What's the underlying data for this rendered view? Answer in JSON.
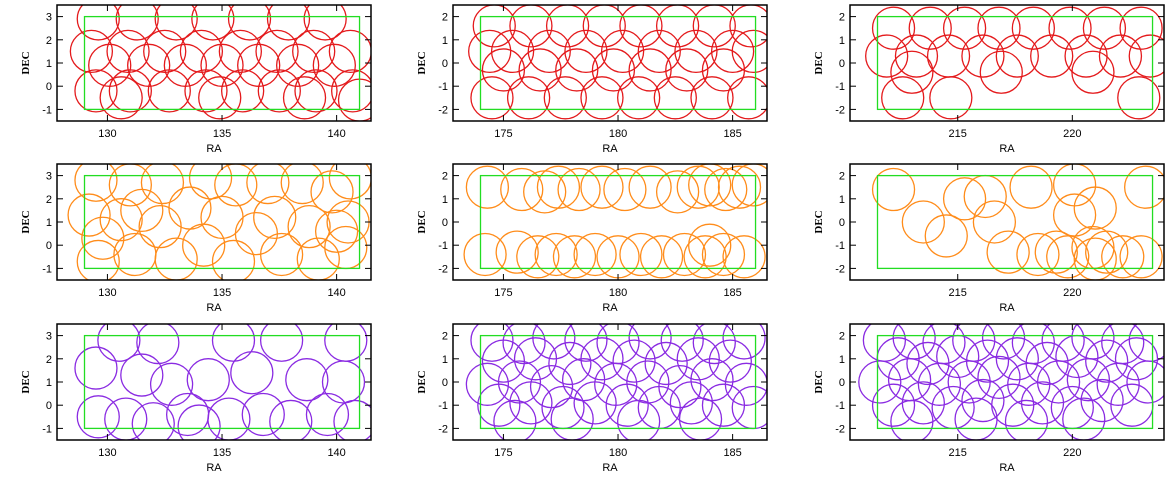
{
  "chart_data": [
    {
      "type": "scatter",
      "xlabel": "RA",
      "ylabel": "DEC",
      "xlim": [
        127.8,
        141.5
      ],
      "ylim": [
        -1.5,
        3.5
      ],
      "xticks": [
        130,
        135,
        140
      ],
      "yticks": [
        -1,
        0,
        1,
        2,
        3
      ],
      "region": {
        "x": [
          129,
          141
        ],
        "y": [
          -1,
          3
        ]
      },
      "series": [
        {
          "color": "#e41a1c",
          "x": [
            129.6,
            131.3,
            133.0,
            134.6,
            136.2,
            137.9,
            139.5,
            129.3,
            130.9,
            132.5,
            134.1,
            135.8,
            137.4,
            139.0,
            140.6,
            130.1,
            131.8,
            133.4,
            135.0,
            136.6,
            138.3,
            139.9,
            129.5,
            131.0,
            132.7,
            134.3,
            135.9,
            137.5,
            139.1,
            140.7,
            130.6,
            134.9,
            138.6,
            141.0
          ],
          "y": [
            2.9,
            2.9,
            2.9,
            2.9,
            2.9,
            2.9,
            2.9,
            1.5,
            1.5,
            1.5,
            1.5,
            1.5,
            1.5,
            1.5,
            1.5,
            0.9,
            0.9,
            0.9,
            0.9,
            0.9,
            0.9,
            0.9,
            -0.2,
            -0.2,
            -0.2,
            -0.2,
            -0.2,
            -0.2,
            -0.2,
            -0.2,
            -0.5,
            -0.5,
            -0.5,
            -0.6
          ]
        }
      ]
    },
    {
      "type": "scatter",
      "xlabel": "RA",
      "ylabel": "DEC",
      "xlim": [
        172.8,
        186.5
      ],
      "ylim": [
        -2.5,
        2.5
      ],
      "xticks": [
        175,
        180,
        185
      ],
      "yticks": [
        -2,
        -1,
        0,
        1,
        2
      ],
      "region": {
        "x": [
          174,
          186
        ],
        "y": [
          -2,
          2
        ]
      },
      "series": [
        {
          "color": "#e41a1c",
          "x": [
            174.6,
            176.2,
            177.8,
            179.4,
            181.0,
            182.6,
            184.2,
            185.8,
            174.4,
            175.4,
            177.0,
            178.6,
            180.2,
            181.8,
            183.4,
            185.0,
            185.9,
            175.0,
            176.6,
            178.2,
            179.8,
            181.4,
            183.0,
            184.6,
            174.5,
            176.1,
            177.7,
            179.3,
            180.9,
            182.5,
            184.1,
            185.7
          ],
          "y": [
            1.6,
            1.6,
            1.6,
            1.6,
            1.6,
            1.6,
            1.6,
            1.6,
            0.5,
            0.5,
            0.5,
            0.5,
            0.5,
            0.5,
            0.5,
            0.5,
            0.5,
            -0.3,
            -0.3,
            -0.3,
            -0.3,
            -0.3,
            -0.3,
            -0.3,
            -1.5,
            -1.5,
            -1.5,
            -1.5,
            -1.5,
            -1.5,
            -1.5,
            -1.5
          ]
        }
      ]
    },
    {
      "type": "scatter",
      "xlabel": "RA",
      "ylabel": "DEC",
      "xlim": [
        210.3,
        224
      ],
      "ylim": [
        -2.5,
        2.5
      ],
      "xticks": [
        215,
        220
      ],
      "yticks": [
        -2,
        -1,
        0,
        1,
        2
      ],
      "region": {
        "x": [
          211.5,
          223.5
        ],
        "y": [
          -2,
          2
        ]
      },
      "series": [
        {
          "color": "#e41a1c",
          "x": [
            212.2,
            213.8,
            215.3,
            216.8,
            218.3,
            219.9,
            221.4,
            223.0,
            211.9,
            213.2,
            214.6,
            216.1,
            217.6,
            219.1,
            220.6,
            222.1,
            223.4,
            213.0,
            216.9,
            220.9,
            212.6,
            214.7,
            222.9
          ],
          "y": [
            1.5,
            1.5,
            1.5,
            1.5,
            1.5,
            1.5,
            1.5,
            1.5,
            0.3,
            0.3,
            0.3,
            0.3,
            0.3,
            0.3,
            0.3,
            0.3,
            0.3,
            -0.4,
            -0.4,
            -0.4,
            -1.5,
            -1.5,
            -1.5
          ]
        }
      ]
    },
    {
      "type": "scatter",
      "xlabel": "RA",
      "ylabel": "DEC",
      "xlim": [
        127.8,
        141.5
      ],
      "ylim": [
        -1.5,
        3.5
      ],
      "xticks": [
        130,
        135,
        140
      ],
      "yticks": [
        -1,
        0,
        1,
        2,
        3
      ],
      "region": {
        "x": [
          129,
          141
        ],
        "y": [
          -1,
          3
        ]
      },
      "series": [
        {
          "color": "#ff8c1a",
          "x": [
            129.5,
            129.2,
            129.8,
            129.6,
            130.6,
            131.0,
            131.5,
            131.2,
            132.3,
            132.4,
            133.0,
            133.6,
            134.5,
            134.2,
            135.0,
            135.6,
            135.5,
            136.5,
            137.0,
            137.3,
            137.6,
            138.5,
            138.8,
            139.2,
            139.8,
            140.0,
            140.6,
            140.5,
            140.4
          ],
          "y": [
            2.8,
            1.3,
            0.3,
            -0.7,
            1.1,
            2.6,
            1.5,
            -0.4,
            0.8,
            2.7,
            -0.6,
            1.6,
            2.9,
            0.0,
            1.2,
            2.6,
            -0.7,
            0.5,
            2.7,
            1.2,
            -0.4,
            2.7,
            0.8,
            -0.6,
            2.3,
            0.6,
            2.9,
            1.0,
            -0.1
          ]
        }
      ]
    },
    {
      "type": "scatter",
      "xlabel": "RA",
      "ylabel": "DEC",
      "xlim": [
        172.8,
        186.5
      ],
      "ylim": [
        -2.5,
        2.5
      ],
      "xticks": [
        175,
        180,
        185
      ],
      "yticks": [
        -2,
        -1,
        0,
        1,
        2
      ],
      "region": {
        "x": [
          174,
          186
        ],
        "y": [
          -2,
          2
        ]
      },
      "series": [
        {
          "color": "#ff8c1a",
          "x": [
            174.3,
            175.8,
            176.8,
            177.4,
            178.3,
            179.3,
            180.3,
            181.4,
            182.6,
            183.5,
            184.0,
            184.7,
            185.3,
            185.9,
            174.2,
            175.6,
            176.5,
            177.3,
            178.1,
            179.0,
            180.0,
            181.0,
            181.9,
            182.9,
            183.8,
            184.6,
            185.5,
            184.0
          ],
          "y": [
            1.5,
            1.4,
            1.3,
            1.5,
            1.4,
            1.5,
            1.4,
            1.5,
            1.3,
            1.5,
            1.6,
            1.4,
            1.5,
            1.6,
            -1.4,
            -1.3,
            -1.5,
            -1.4,
            -1.5,
            -1.4,
            -1.5,
            -1.4,
            -1.5,
            -1.4,
            -1.5,
            -1.4,
            -1.5,
            -1.0
          ]
        }
      ]
    },
    {
      "type": "scatter",
      "xlabel": "RA",
      "ylabel": "DEC",
      "xlim": [
        210.3,
        224
      ],
      "ylim": [
        -2.5,
        2.5
      ],
      "xticks": [
        215,
        220
      ],
      "yticks": [
        -2,
        -1,
        0,
        1,
        2
      ],
      "region": {
        "x": [
          211.5,
          223.5
        ],
        "y": [
          -2,
          2
        ]
      },
      "series": [
        {
          "color": "#ff8c1a",
          "x": [
            212.2,
            213.5,
            214.5,
            215.3,
            216.2,
            216.6,
            217.2,
            218.2,
            218.5,
            219.3,
            220.1,
            220.1,
            220.9,
            221.0,
            221.5,
            222.2,
            223.2,
            223.0,
            219.8,
            221.0
          ],
          "y": [
            1.4,
            0.0,
            -0.6,
            1.0,
            1.1,
            0.0,
            -1.3,
            1.5,
            -1.4,
            -1.3,
            1.6,
            0.3,
            -1.1,
            0.6,
            -1.3,
            -1.5,
            1.5,
            -1.5,
            -1.5,
            -1.6
          ]
        }
      ]
    },
    {
      "type": "scatter",
      "xlabel": "RA",
      "ylabel": "DEC",
      "xlim": [
        127.8,
        141.5
      ],
      "ylim": [
        -1.5,
        3.5
      ],
      "xticks": [
        130,
        135,
        140
      ],
      "yticks": [
        -1,
        0,
        1,
        2,
        3
      ],
      "region": {
        "x": [
          129,
          141
        ],
        "y": [
          -1,
          3
        ]
      },
      "series": [
        {
          "color": "#8a2be2",
          "x": [
            129.5,
            130.5,
            131.5,
            132.2,
            132.8,
            129.6,
            130.8,
            132.0,
            133.5,
            134.4,
            135.5,
            135.3,
            136.3,
            136.8,
            137.6,
            138.0,
            138.7,
            139.6,
            140.4,
            140.3,
            140.8,
            134.0
          ],
          "y": [
            1.6,
            2.8,
            1.3,
            2.7,
            0.9,
            -0.5,
            -0.6,
            -0.8,
            -0.4,
            1.1,
            2.8,
            -0.6,
            1.4,
            -0.4,
            2.8,
            -0.7,
            1.1,
            -0.4,
            2.8,
            1.0,
            -0.7,
            -0.9
          ]
        }
      ]
    },
    {
      "type": "scatter",
      "xlabel": "RA",
      "ylabel": "DEC",
      "xlim": [
        172.8,
        186.5
      ],
      "ylim": [
        -2.5,
        2.5
      ],
      "xticks": [
        175,
        180,
        185
      ],
      "yticks": [
        -2,
        -1,
        0,
        1,
        2
      ],
      "region": {
        "x": [
          174,
          186
        ],
        "y": [
          -2,
          2
        ]
      },
      "series": [
        {
          "color": "#8a2be2",
          "x": [
            174.5,
            175.9,
            177.2,
            178.6,
            180.0,
            181.4,
            182.8,
            184.2,
            185.5,
            175.0,
            176.4,
            177.9,
            179.3,
            180.7,
            182.1,
            183.5,
            184.9,
            174.3,
            175.7,
            177.1,
            178.5,
            179.9,
            181.3,
            182.7,
            184.1,
            185.6,
            174.8,
            176.2,
            177.6,
            179.0,
            180.4,
            181.8,
            183.2,
            184.6,
            185.9,
            175.5,
            178.0,
            180.9,
            183.6
          ],
          "y": [
            1.8,
            1.7,
            1.9,
            1.8,
            1.7,
            1.9,
            1.8,
            1.7,
            1.9,
            0.9,
            1.0,
            0.8,
            1.0,
            0.9,
            0.8,
            1.0,
            0.9,
            -0.1,
            0.0,
            -0.2,
            0.1,
            -0.1,
            0.0,
            -0.2,
            0.1,
            -0.1,
            -1.0,
            -0.9,
            -1.1,
            -0.9,
            -1.0,
            -1.1,
            -0.9,
            -1.0,
            -1.1,
            -1.7,
            -1.6,
            -1.7,
            -1.6
          ]
        }
      ]
    },
    {
      "type": "scatter",
      "xlabel": "RA",
      "ylabel": "DEC",
      "xlim": [
        210.3,
        224
      ],
      "ylim": [
        -2.5,
        2.5
      ],
      "xticks": [
        215,
        220
      ],
      "yticks": [
        -2,
        -1,
        0,
        1,
        2
      ],
      "region": {
        "x": [
          211.5,
          223.5
        ],
        "y": [
          -2,
          2
        ]
      },
      "series": [
        {
          "color": "#8a2be2",
          "x": [
            211.8,
            213.1,
            214.4,
            215.7,
            217.0,
            218.3,
            219.6,
            220.9,
            222.2,
            223.4,
            212.4,
            213.7,
            215.0,
            216.3,
            217.6,
            218.9,
            220.2,
            221.5,
            222.8,
            211.6,
            212.9,
            214.2,
            215.5,
            216.8,
            218.1,
            219.4,
            220.7,
            222.0,
            223.3,
            212.2,
            213.5,
            214.8,
            216.1,
            217.4,
            218.7,
            220.0,
            221.3,
            222.6,
            213.0,
            215.8,
            218.0,
            220.5
          ],
          "y": [
            1.8,
            1.9,
            1.7,
            1.8,
            1.9,
            1.7,
            1.8,
            1.9,
            1.7,
            1.8,
            1.0,
            0.8,
            1.1,
            0.9,
            1.0,
            0.8,
            1.1,
            0.9,
            1.0,
            0.0,
            0.1,
            -0.1,
            0.0,
            0.2,
            -0.1,
            0.0,
            0.1,
            -0.1,
            0.0,
            -1.0,
            -0.9,
            -1.1,
            -0.8,
            -1.0,
            -0.9,
            -1.1,
            -0.8,
            -1.0,
            -1.7,
            -1.6,
            -1.7,
            -1.6
          ]
        }
      ]
    }
  ]
}
